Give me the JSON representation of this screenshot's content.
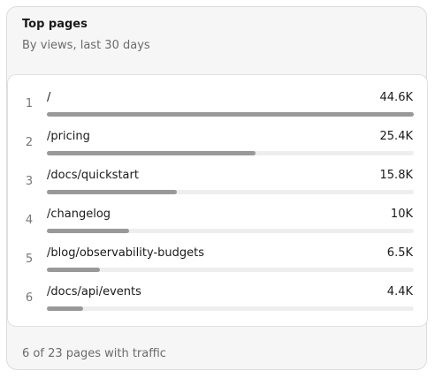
{
  "title": "Top pages",
  "subtitle": "By views, last 30 days",
  "rows": [
    {
      "rank": 1,
      "path": "/",
      "value": 44600,
      "value_label": "44.6K"
    },
    {
      "rank": 2,
      "path": "/pricing",
      "value": 25400,
      "value_label": "25.4K"
    },
    {
      "rank": 3,
      "path": "/docs/quickstart",
      "value": 15800,
      "value_label": "15.8K"
    },
    {
      "rank": 4,
      "path": "/changelog",
      "value": 10000,
      "value_label": "10K"
    },
    {
      "rank": 5,
      "path": "/blog/observability-budgets",
      "value": 6500,
      "value_label": "6.5K"
    },
    {
      "rank": 6,
      "path": "/docs/api/events",
      "value": 4400,
      "value_label": "4.4K"
    }
  ],
  "footer": "6 of 23 pages with traffic"
}
